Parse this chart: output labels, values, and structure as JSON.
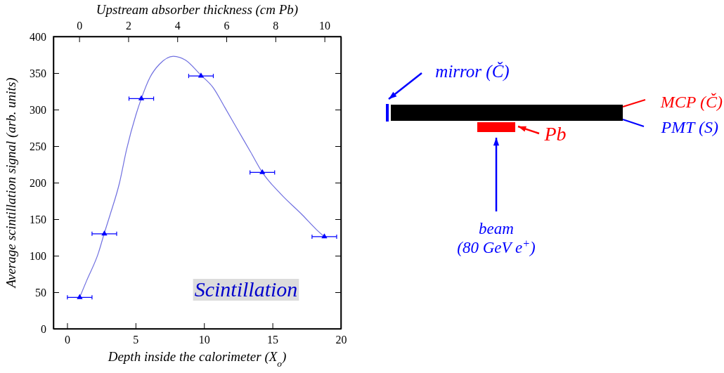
{
  "chart_data": {
    "type": "scatter",
    "xlabel": "Depth inside the calorimeter (X$_{o}$)",
    "ylabel": "Average scintillation signal (arb. units)",
    "x2label": "Upstream absorber thickness (cm Pb)",
    "xlim": [
      -1,
      20
    ],
    "xticks": [
      0,
      5,
      10,
      15,
      20
    ],
    "x2lim": [
      -1.05,
      10.67
    ],
    "x2ticks": [
      0,
      2,
      4,
      6,
      8,
      10
    ],
    "ylim": [
      0,
      400
    ],
    "yticks": [
      0,
      50,
      100,
      150,
      200,
      250,
      300,
      350,
      400
    ],
    "series": [
      {
        "type": "line",
        "color": "#7070e0",
        "marker": "none",
        "x": [
          0.92,
          1.43,
          2.29,
          2.72,
          3.14,
          3.83,
          4.34,
          5.03,
          5.42,
          6.05,
          6.74,
          7.76,
          8.62,
          9.78,
          10.67,
          11.52,
          12.38,
          13.4,
          14.26,
          15.63,
          17.17,
          18.2,
          18.79
        ],
        "values": [
          43,
          66,
          104,
          131,
          156,
          200,
          245,
          293,
          315,
          344,
          362,
          373,
          368,
          347,
          330,
          303,
          275,
          242,
          214,
          184,
          156,
          136,
          126
        ]
      },
      {
        "color": "#0000ff",
        "marker": "triangle",
        "x": [
          0.92,
          2.72,
          5.42,
          9.78,
          14.26,
          18.79
        ],
        "values": [
          43,
          130,
          315,
          346,
          214,
          126
        ],
        "xerrors": [
          0.9,
          0.9,
          0.9,
          0.9,
          0.9,
          0.9
        ]
      }
    ],
    "grid": false,
    "annotations": [
      "Scintillation",
      "mirror (Č)",
      "MCP (Č)",
      "PMT (S)",
      "Pb",
      "beam",
      "(80 GeV e$^{+}$)"
    ]
  }
}
